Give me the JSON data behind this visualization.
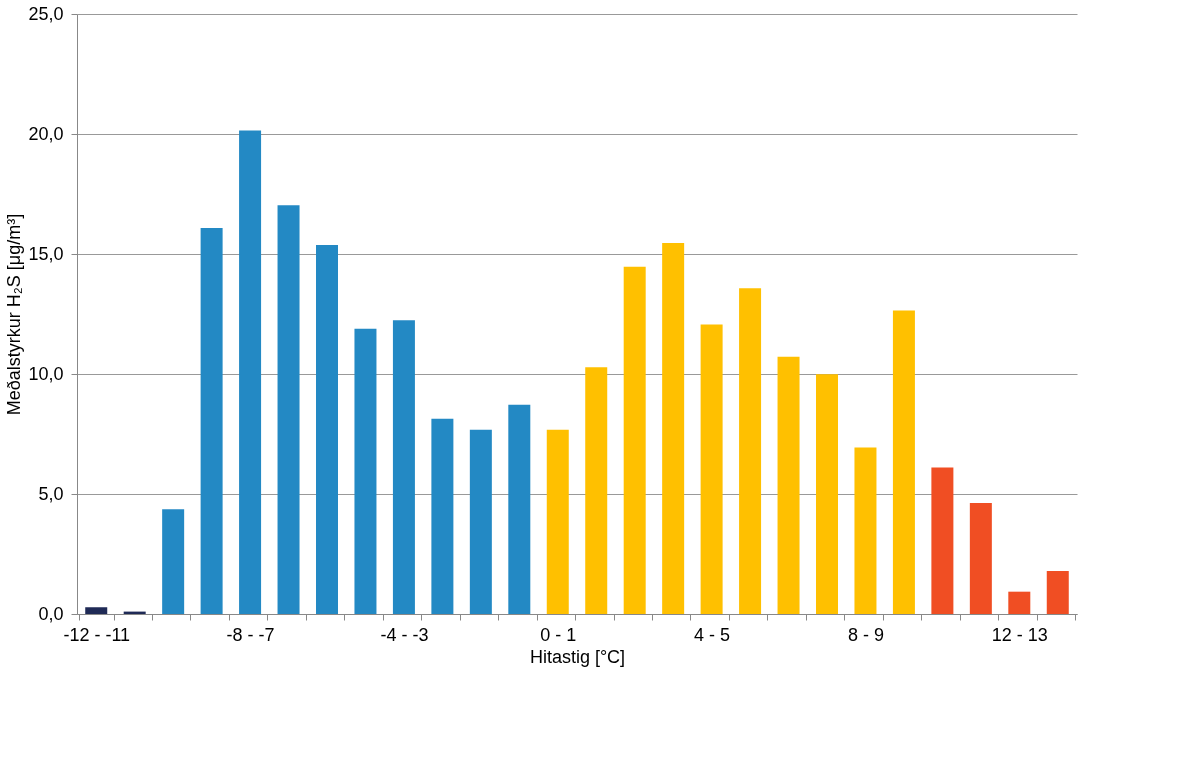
{
  "chart_data": {
    "type": "bar",
    "xlabel": "Hitastig [°C]",
    "ylabel": "Meðalstyrkur H₂S [μg/m³]",
    "categories": [
      "-12 - -11",
      null,
      null,
      null,
      "-8 - -7",
      null,
      null,
      null,
      "-4 - -3",
      null,
      null,
      null,
      "0 - 1",
      null,
      null,
      null,
      "4 - 5",
      null,
      null,
      null,
      "8 - 9",
      null,
      null,
      null,
      "12 - 13",
      null
    ],
    "values": [
      0.28,
      0.1,
      4.36,
      16.08,
      20.15,
      17.03,
      15.38,
      11.89,
      12.24,
      8.14,
      7.68,
      8.72,
      7.68,
      10.28,
      14.47,
      15.46,
      12.06,
      13.57,
      10.72,
      9.99,
      6.94,
      12.65,
      6.1,
      4.63,
      0.93,
      1.79
    ],
    "colors": [
      "#1f2a56",
      "#1f2a56",
      "#2389c4",
      "#2389c4",
      "#2389c4",
      "#2389c4",
      "#2389c4",
      "#2389c4",
      "#2389c4",
      "#2389c4",
      "#2389c4",
      "#2389c4",
      "#ffc000",
      "#ffc000",
      "#ffc000",
      "#ffc000",
      "#ffc000",
      "#ffc000",
      "#ffc000",
      "#ffc000",
      "#ffc000",
      "#ffc000",
      "#f04e23",
      "#f04e23",
      "#f04e23",
      "#f04e23"
    ],
    "ylim": [
      0,
      25
    ],
    "yticks": [
      {
        "value": 0,
        "label": "0,0"
      },
      {
        "value": 5,
        "label": "5,0"
      },
      {
        "value": 10,
        "label": "10,0"
      },
      {
        "value": 15,
        "label": "15,0"
      },
      {
        "value": 20,
        "label": "20,0"
      },
      {
        "value": 25,
        "label": "25,0"
      }
    ],
    "grid": "y"
  }
}
